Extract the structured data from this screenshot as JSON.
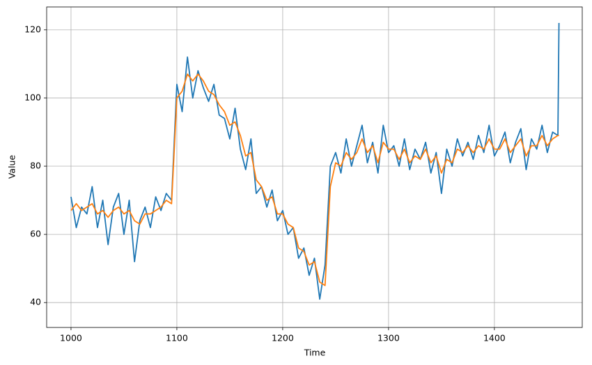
{
  "chart_data": {
    "type": "line",
    "x_label": "Time",
    "y_label": "Value",
    "x": [
      1000,
      1005,
      1010,
      1015,
      1020,
      1025,
      1030,
      1035,
      1040,
      1045,
      1050,
      1055,
      1060,
      1065,
      1070,
      1075,
      1080,
      1085,
      1090,
      1095,
      1100,
      1105,
      1110,
      1115,
      1120,
      1125,
      1130,
      1135,
      1140,
      1145,
      1150,
      1155,
      1160,
      1165,
      1170,
      1175,
      1180,
      1185,
      1190,
      1195,
      1200,
      1205,
      1210,
      1215,
      1220,
      1225,
      1230,
      1235,
      1240,
      1245,
      1250,
      1255,
      1260,
      1265,
      1270,
      1275,
      1280,
      1285,
      1290,
      1295,
      1300,
      1305,
      1310,
      1315,
      1320,
      1325,
      1330,
      1335,
      1340,
      1345,
      1350,
      1355,
      1360,
      1365,
      1370,
      1375,
      1380,
      1385,
      1390,
      1395,
      1400,
      1405,
      1410,
      1415,
      1420,
      1425,
      1430,
      1435,
      1440,
      1445,
      1450,
      1455,
      1460,
      1461
    ],
    "series": [
      {
        "color": "#1f77b4",
        "values": [
          71,
          62,
          68,
          66,
          74,
          62,
          70,
          57,
          68,
          72,
          60,
          70,
          52,
          64,
          68,
          62,
          71,
          67,
          72,
          70,
          104,
          96,
          112,
          100,
          108,
          103,
          99,
          104,
          95,
          94,
          88,
          97,
          85,
          79,
          88,
          72,
          74,
          68,
          73,
          64,
          67,
          60,
          62,
          53,
          56,
          48,
          53,
          41,
          51,
          80,
          84,
          78,
          88,
          80,
          86,
          92,
          81,
          87,
          78,
          92,
          84,
          86,
          80,
          88,
          79,
          85,
          82,
          87,
          78,
          84,
          72,
          85,
          80,
          88,
          83,
          87,
          82,
          89,
          84,
          92,
          83,
          86,
          90,
          81,
          87,
          91,
          79,
          88,
          85,
          92,
          84,
          90,
          89,
          122
        ]
      },
      {
        "color": "#ff7f0e",
        "values": [
          67,
          69,
          67,
          68,
          69,
          66,
          67,
          65,
          67,
          68,
          66,
          67,
          64,
          63,
          66,
          66,
          67,
          68,
          70,
          69,
          100,
          102,
          107,
          105,
          107,
          105,
          102,
          101,
          98,
          96,
          92,
          93,
          89,
          83,
          84,
          76,
          74,
          70,
          71,
          66,
          66,
          63,
          62,
          56,
          55,
          51,
          52,
          46,
          45,
          74,
          81,
          80,
          84,
          82,
          84,
          88,
          84,
          86,
          81,
          87,
          85,
          85,
          82,
          85,
          81,
          83,
          82,
          85,
          81,
          83,
          78,
          82,
          81,
          85,
          84,
          86,
          84,
          86,
          85,
          88,
          85,
          85,
          88,
          84,
          86,
          88,
          83,
          86,
          86,
          89,
          86,
          88,
          89,
          89
        ]
      }
    ],
    "xlim": [
      977,
      1483
    ],
    "ylim": [
      32.7,
      126.7
    ],
    "xticks": [
      1000,
      1100,
      1200,
      1300,
      1400
    ],
    "yticks": [
      40,
      60,
      80,
      100,
      120
    ],
    "grid": true
  }
}
